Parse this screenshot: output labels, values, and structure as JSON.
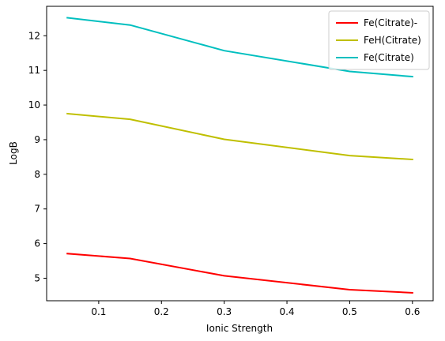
{
  "chart_data": {
    "type": "line",
    "title": "",
    "xlabel": "Ionic Strength",
    "ylabel": "LogB",
    "x": [
      0.05,
      0.15,
      0.3,
      0.5,
      0.6
    ],
    "xlim": [
      0.017,
      0.633
    ],
    "ylim": [
      4.35,
      12.85
    ],
    "xticks": [
      0.1,
      0.2,
      0.3,
      0.4,
      0.5,
      0.6
    ],
    "xtick_labels": [
      "0.1",
      "0.2",
      "0.3",
      "0.4",
      "0.5",
      "0.6"
    ],
    "yticks": [
      5,
      6,
      7,
      8,
      9,
      10,
      11,
      12
    ],
    "ytick_labels": [
      "5",
      "6",
      "7",
      "8",
      "9",
      "10",
      "11",
      "12"
    ],
    "grid": false,
    "legend_position": "top-right",
    "series": [
      {
        "name": "Fe(Citrate)-",
        "color": "#ff0000",
        "values": [
          5.71,
          5.57,
          5.07,
          4.67,
          4.58
        ]
      },
      {
        "name": "FeH(Citrate)",
        "color": "#bfbf00",
        "values": [
          9.75,
          9.59,
          9.01,
          8.54,
          8.43
        ]
      },
      {
        "name": "Fe(Citrate)",
        "color": "#00bfbf",
        "values": [
          12.52,
          12.31,
          11.57,
          10.97,
          10.82
        ]
      }
    ]
  }
}
